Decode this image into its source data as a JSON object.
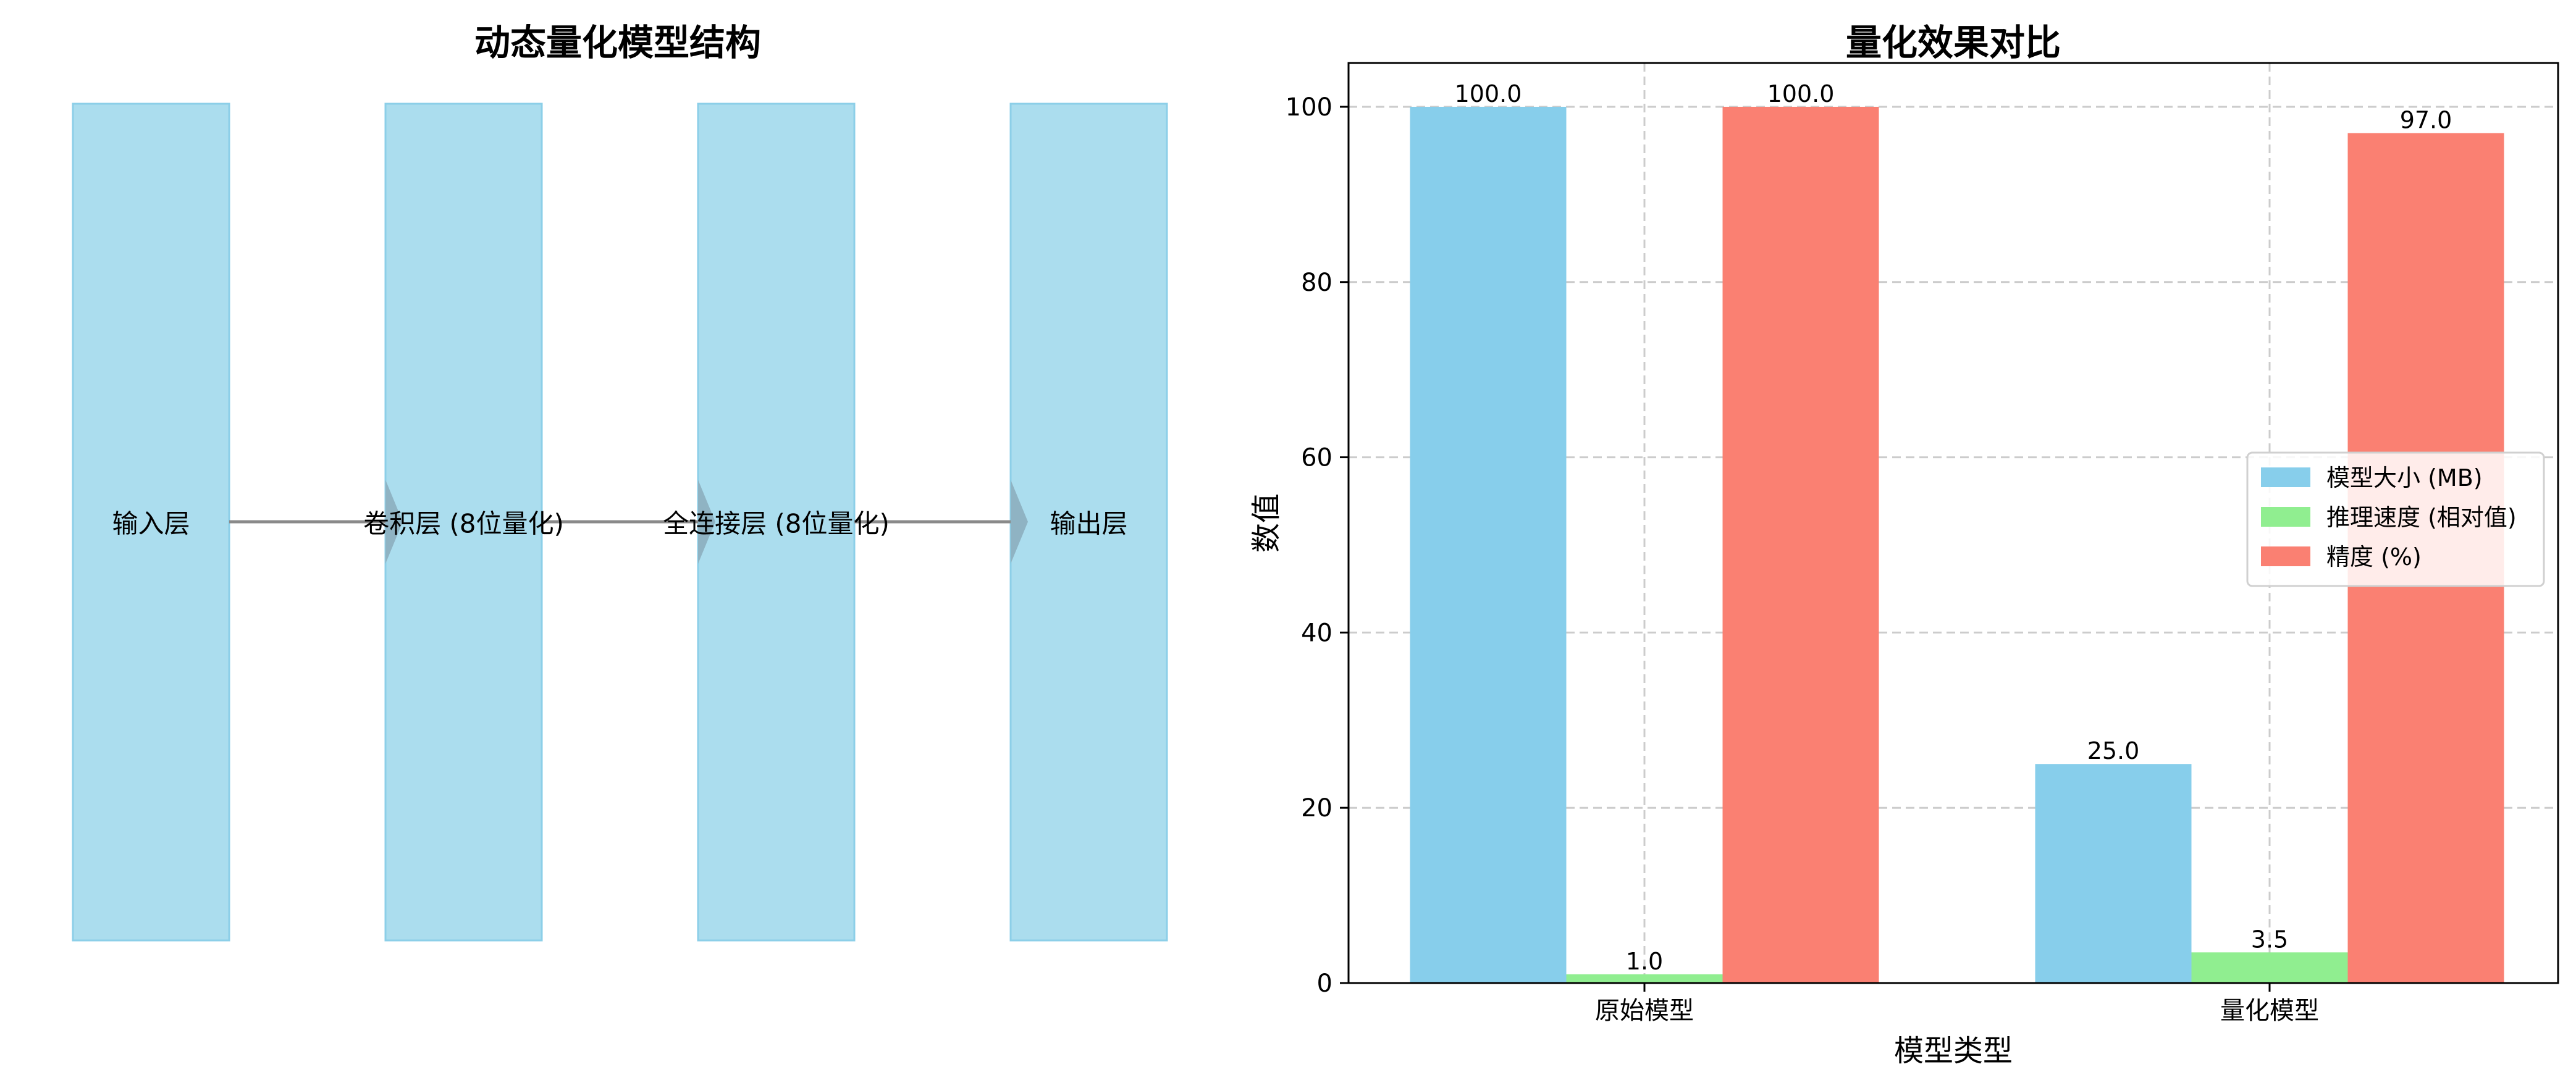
{
  "diagram": {
    "title": "动态量化模型结构",
    "nodes": [
      {
        "label": "输入层"
      },
      {
        "label": "卷积层 (8位量化)"
      },
      {
        "label": "全连接层 (8位量化)"
      },
      {
        "label": "输出层"
      }
    ],
    "colors": {
      "box_fill": "#ABDDEE",
      "box_edge": "#8CCFE8",
      "arrow": "#8A8A8A",
      "arrow_head": "#8FB3C3"
    }
  },
  "chart_data": {
    "type": "bar",
    "title": "量化效果对比",
    "xlabel": "模型类型",
    "ylabel": "数值",
    "categories": [
      "原始模型",
      "量化模型"
    ],
    "series": [
      {
        "name": "模型大小 (MB)",
        "values": [
          100.0,
          25.0
        ],
        "labels": [
          "100.0",
          "25.0"
        ],
        "color": "#87CEEB"
      },
      {
        "name": "推理速度 (相对值)",
        "values": [
          1.0,
          3.5
        ],
        "labels": [
          "1.0",
          "3.5"
        ],
        "color": "#90EE90"
      },
      {
        "name": "精度 (%)",
        "values": [
          100.0,
          97.0
        ],
        "labels": [
          "100.0",
          "97.0"
        ],
        "color": "#FA8072"
      }
    ],
    "yticks": [
      0,
      20,
      40,
      60,
      80,
      100
    ],
    "ylim": [
      0,
      105
    ],
    "grid": true,
    "legend": "center-right"
  }
}
